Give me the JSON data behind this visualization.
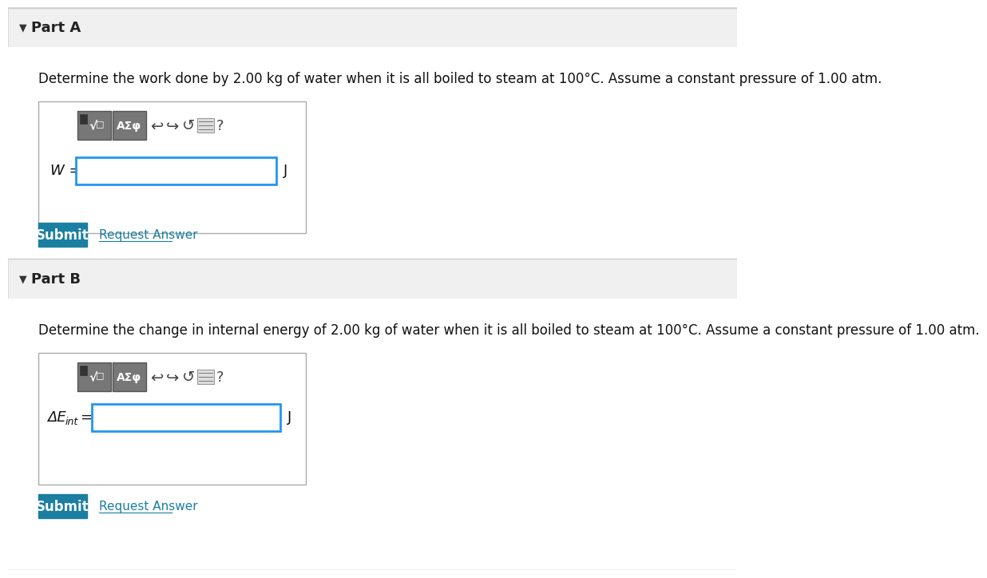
{
  "bg_color": "#f5f5f5",
  "white": "#ffffff",
  "divider_color": "#cccccc",
  "part_header_bg": "#eeeeee",
  "part_a_label": "Part A",
  "part_b_label": "Part B",
  "part_a_text": "Determine the work done by 2.00 kg of water when it is all boiled to steam at 100°C. Assume a constant pressure of 1.00 atm.",
  "part_b_text": "Determine the change in internal energy of 2.00 kg of water when it is all boiled to steam at 100°C. Assume a constant pressure of 1.00 atm.",
  "w_label": "W =",
  "delta_e_label": "ΔE_int =",
  "j_label": "J",
  "submit_color": "#1a7fa0",
  "submit_text": "Submit",
  "request_answer_text": "Request Answer",
  "request_answer_color": "#1a7fa0",
  "input_border_color": "#2196f3",
  "toolbar_bg": "#888888",
  "toolbar_text_color": "#ffffff",
  "outer_box_border": "#aaaaaa",
  "triangle_color": "#333333"
}
